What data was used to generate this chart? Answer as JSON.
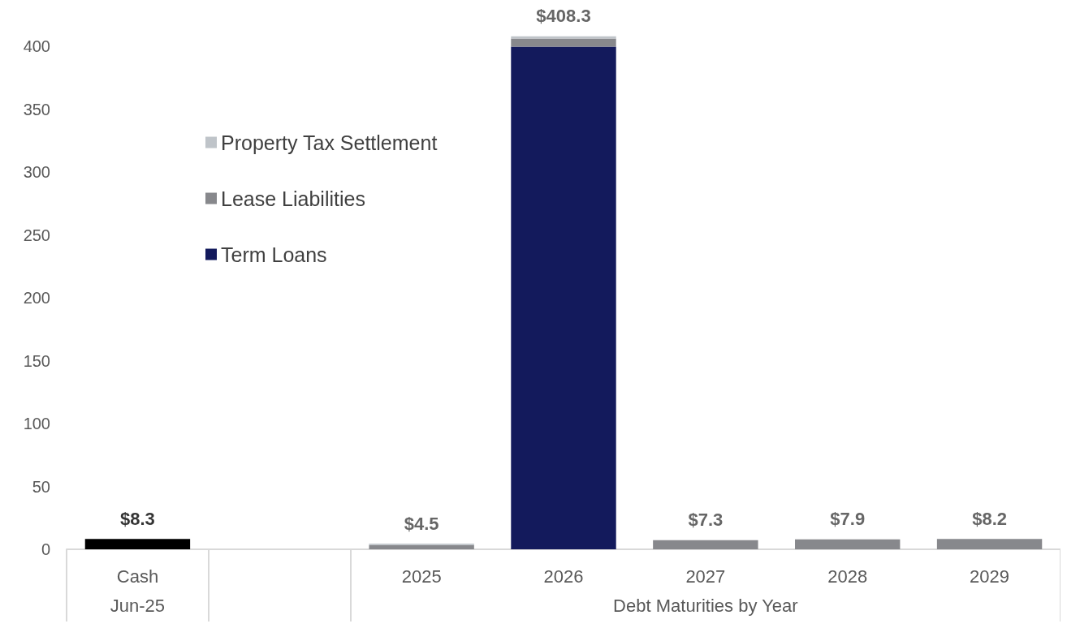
{
  "chart_data": {
    "type": "bar",
    "stacked": true,
    "categories": [
      "Cash",
      null,
      "2025",
      "2026",
      "2027",
      "2028",
      "2029"
    ],
    "series": [
      {
        "color": "#000000",
        "values": [
          8.3,
          null,
          null,
          null,
          null,
          null,
          null
        ]
      },
      {
        "name": "Term Loans",
        "color": "#131a5c",
        "values": [
          null,
          null,
          0,
          400,
          0,
          0,
          0
        ]
      },
      {
        "name": "Lease Liabilities",
        "color": "#87888c",
        "values": [
          null,
          null,
          3.4,
          6.5,
          7.3,
          7.9,
          8.2
        ]
      },
      {
        "name": "Property Tax Settlement",
        "color": "#bfc4c9",
        "values": [
          null,
          null,
          1.1,
          1.8,
          0,
          0,
          0
        ]
      }
    ],
    "totals": [
      "$8.3",
      null,
      "$4.5",
      "$408.3",
      "$7.3",
      "$7.9",
      "$8.2"
    ],
    "annotations": [
      "Jun-25",
      "Debt Maturities by Year"
    ],
    "ylim": [
      0,
      410
    ],
    "yticks": [
      0,
      50,
      100,
      150,
      200,
      250,
      300,
      350,
      400
    ],
    "grid": false,
    "legend": "top left"
  }
}
